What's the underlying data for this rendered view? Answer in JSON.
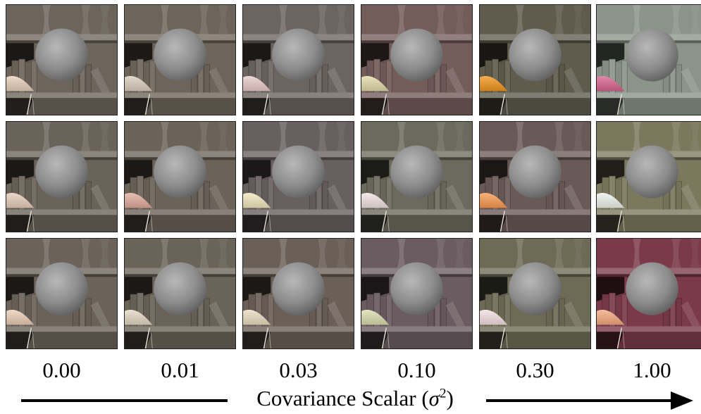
{
  "figure": {
    "column_labels": [
      "0.00",
      "0.01",
      "0.03",
      "0.10",
      "0.30",
      "1.00"
    ],
    "axis_title_prefix": "Covariance Scalar (",
    "axis_symbol": "σ",
    "axis_exponent": "2",
    "axis_title_suffix": ")",
    "rows": 3,
    "columns": 6,
    "scene_objects": [
      "bookshelf",
      "gray-sphere",
      "lamp-shade",
      "books",
      "vases"
    ],
    "panel_tints": [
      [
        "#6d655b",
        "#6e655a",
        "#6c6460",
        "#735c5a",
        "#5f5c4d",
        "#8a9488"
      ],
      [
        "#6a6359",
        "#6b6258",
        "#685f60",
        "#6b6a5c",
        "#6a5a57",
        "#7c785e"
      ],
      [
        "#6b6359",
        "#6a6358",
        "#6b6058",
        "#6a5c60",
        "#6d6a55",
        "#7a3a4a"
      ]
    ],
    "lamp_colors": [
      [
        "#e7cdb9",
        "#d9ccbb",
        "#e7c9c8",
        "#e0d9a7",
        "#f0941a",
        "#d7608d"
      ],
      [
        "#e6ccb6",
        "#e0a99a",
        "#f0e6bb",
        "#f0e1e2",
        "#f8984c",
        "#eef0ea"
      ],
      [
        "#e9ccb4",
        "#e3d7c4",
        "#e9dcc0",
        "#d9dcae",
        "#f3dde0",
        "#f3a77e"
      ]
    ]
  }
}
